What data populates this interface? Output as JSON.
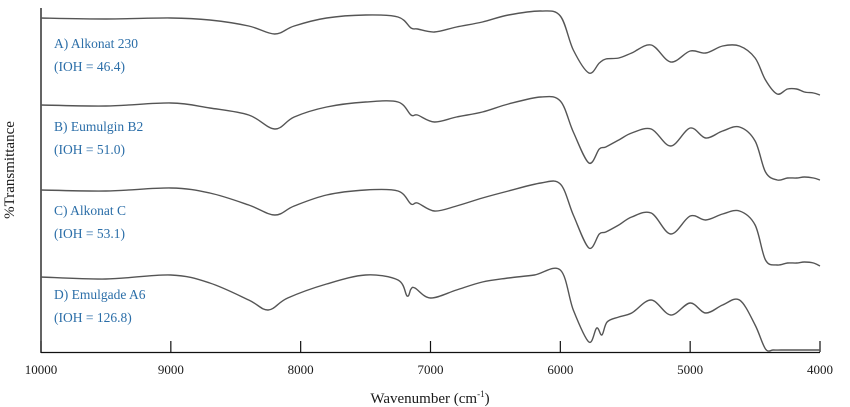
{
  "chart_data": {
    "type": "line",
    "title": "",
    "xlabel": "Wavenumber (cm-1)",
    "xlabel_display": "Wavenumber (cm",
    "xlabel_superscript": "-1",
    "xlabel_close": ")",
    "ylabel": "%Transmittance",
    "xlim": [
      10000,
      4000
    ],
    "x_reversed": true,
    "x_ticks": [
      10000,
      9000,
      8000,
      7000,
      6000,
      5000,
      4000
    ],
    "x_tick_labels": [
      "10000",
      "9000",
      "8000",
      "7000",
      "6000",
      "5000",
      "4000"
    ],
    "y_ticks": [],
    "grid": false,
    "legend_position": "inline-left",
    "label_color": "#2b6ea8",
    "line_color": "#555555",
    "series": [
      {
        "name": "A) Alkonat 230",
        "label_line1": "A) Alkonat 230",
        "label_line2": "(IOH = 46.4)",
        "x": [
          10000,
          9500,
          9000,
          8700,
          8400,
          8200,
          8050,
          7800,
          7500,
          7250,
          7150,
          7100,
          6970,
          6800,
          6600,
          6400,
          6150,
          6000,
          5900,
          5780,
          5700,
          5650,
          5550,
          5450,
          5300,
          5150,
          5000,
          4880,
          4750,
          4620,
          4500,
          4420,
          4330,
          4250,
          4180,
          4120,
          4050,
          4000
        ],
        "y": [
          18,
          19,
          18,
          20,
          26,
          34,
          26,
          18,
          15,
          17,
          28,
          29,
          32,
          27,
          22,
          15,
          11,
          16,
          50,
          73,
          63,
          59,
          58,
          53,
          45,
          62,
          51,
          53,
          46,
          46,
          58,
          80,
          94,
          89,
          89,
          92,
          93,
          95
        ]
      },
      {
        "name": "B) Eumulgin B2",
        "label_line1": "B) Eumulgin B2",
        "label_line2": "(IOH = 51.0)",
        "x": [
          10000,
          9500,
          9000,
          8700,
          8400,
          8200,
          8050,
          7800,
          7500,
          7250,
          7150,
          7100,
          6970,
          6800,
          6600,
          6400,
          6150,
          6000,
          5900,
          5780,
          5700,
          5650,
          5550,
          5450,
          5300,
          5150,
          5000,
          4880,
          4750,
          4620,
          4500,
          4420,
          4330,
          4250,
          4180,
          4120,
          4050,
          4000
        ],
        "y": [
          105,
          106,
          103,
          108,
          115,
          129,
          117,
          107,
          102,
          102,
          115,
          115,
          122,
          117,
          112,
          104,
          97,
          101,
          132,
          163,
          149,
          147,
          140,
          133,
          129,
          146,
          128,
          138,
          131,
          127,
          141,
          172,
          180,
          178,
          178,
          177,
          178,
          180
        ]
      },
      {
        "name": "C) Alkonat C",
        "label_line1": "C) Alkonat C",
        "label_line2": "(IOH = 53.1)",
        "x": [
          10000,
          9500,
          9000,
          8700,
          8400,
          8200,
          8050,
          7800,
          7500,
          7250,
          7150,
          7100,
          6970,
          6800,
          6600,
          6400,
          6150,
          6000,
          5900,
          5780,
          5700,
          5650,
          5550,
          5450,
          5300,
          5150,
          5000,
          4880,
          4750,
          4620,
          4500,
          4420,
          4330,
          4250,
          4180,
          4120,
          4050,
          4000
        ],
        "y": [
          190,
          191,
          188,
          193,
          205,
          215,
          206,
          195,
          190,
          191,
          204,
          203,
          211,
          206,
          198,
          191,
          183,
          184,
          215,
          248,
          234,
          232,
          225,
          217,
          213,
          234,
          216,
          220,
          214,
          211,
          225,
          260,
          265,
          263,
          263,
          262,
          263,
          266
        ]
      },
      {
        "name": "D) Emulgade A6",
        "label_line1": "D) Emulgade A6",
        "label_line2": "(IOH =  126.8)",
        "x": [
          10000,
          9500,
          9000,
          8700,
          8400,
          8250,
          8100,
          7800,
          7500,
          7250,
          7180,
          7150,
          7120,
          7000,
          6800,
          6600,
          6400,
          6200,
          6000,
          5900,
          5780,
          5720,
          5680,
          5640,
          5550,
          5450,
          5300,
          5150,
          5000,
          4880,
          4750,
          4620,
          4500,
          4420,
          4360,
          4300,
          4200,
          4120,
          4000
        ],
        "y": [
          277,
          279,
          275,
          283,
          300,
          310,
          298,
          284,
          275,
          280,
          296,
          289,
          288,
          298,
          290,
          282,
          278,
          275,
          270,
          310,
          342,
          328,
          335,
          322,
          317,
          313,
          300,
          315,
          303,
          313,
          305,
          300,
          325,
          349,
          350,
          350,
          350,
          350,
          350
        ]
      }
    ]
  }
}
